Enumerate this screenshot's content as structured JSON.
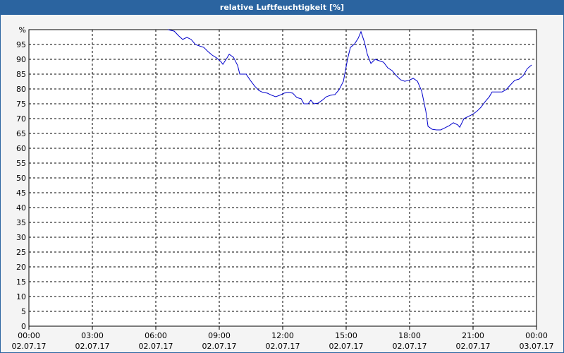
{
  "chart_data": {
    "type": "line",
    "title": "relative Luftfeuchtigkeit [%]",
    "x": [
      6.57,
      6.87,
      7.07,
      7.27,
      7.47,
      7.67,
      7.87,
      8.07,
      8.27,
      8.47,
      8.67,
      8.87,
      9.07,
      9.17,
      9.37,
      9.47,
      9.67,
      9.87,
      9.97,
      10.27,
      10.47,
      10.67,
      10.87,
      11.07,
      11.27,
      11.47,
      11.67,
      11.87,
      12.07,
      12.27,
      12.47,
      12.67,
      12.87,
      13.0,
      13.2,
      13.33,
      13.47,
      13.67,
      13.87,
      14.07,
      14.27,
      14.47,
      14.67,
      14.87,
      15.07,
      15.2,
      15.4,
      15.57,
      15.7,
      15.87,
      16.0,
      16.17,
      16.37,
      16.57,
      16.77,
      16.97,
      17.17,
      17.37,
      17.57,
      17.77,
      17.97,
      18.17,
      18.37,
      18.57,
      18.77,
      18.87,
      19.07,
      19.27,
      19.47,
      19.67,
      19.87,
      20.07,
      20.27,
      20.37,
      20.57,
      20.77,
      20.97,
      21.17,
      21.37,
      21.57,
      21.77,
      21.9,
      22.17,
      22.37,
      22.57,
      22.77,
      22.97,
      23.17,
      23.37,
      23.57,
      23.77
    ],
    "values": [
      100,
      99.5,
      98,
      96.7,
      97.4,
      96.7,
      95,
      94.5,
      94,
      92.6,
      91.4,
      90.5,
      89.3,
      88.3,
      90.5,
      91.7,
      90.7,
      87.9,
      85,
      85,
      82.9,
      81,
      79.5,
      78.8,
      78.6,
      77.9,
      77.4,
      77.9,
      78.6,
      78.8,
      78.6,
      77.1,
      76.7,
      75,
      75,
      76.2,
      75,
      75.2,
      76.2,
      77.4,
      77.9,
      78.1,
      79.8,
      82.6,
      90.2,
      94,
      95.2,
      97.1,
      99.3,
      95.7,
      91.7,
      88.6,
      90,
      89.5,
      89,
      87.1,
      86.2,
      84.5,
      83.1,
      82.6,
      82.9,
      83.6,
      82.6,
      79.3,
      72.4,
      67.4,
      66.4,
      66.2,
      66.2,
      66.9,
      67.6,
      68.6,
      67.9,
      67.1,
      70,
      70.7,
      71.4,
      72.4,
      73.8,
      75.7,
      77.4,
      79,
      79,
      79,
      79.8,
      81.4,
      82.9,
      83.3,
      84.5,
      86.9,
      88.1
    ],
    "color": "#0000cc",
    "xlim": [
      0,
      24
    ],
    "xticks": [
      {
        "value": 0,
        "label": "00:00\n02.07.17"
      },
      {
        "value": 3,
        "label": "03:00\n02.07.17"
      },
      {
        "value": 6,
        "label": "06:00\n02.07.17"
      },
      {
        "value": 9,
        "label": "09:00\n02.07.17"
      },
      {
        "value": 12,
        "label": "12:00\n02.07.17"
      },
      {
        "value": 15,
        "label": "15:00\n02.07.17"
      },
      {
        "value": 18,
        "label": "18:00\n02.07.17"
      },
      {
        "value": 21,
        "label": "21:00\n02.07.17"
      },
      {
        "value": 24,
        "label": "00:00\n03.07.17"
      }
    ],
    "ylim": [
      0,
      100
    ],
    "yticks": [
      0,
      5,
      10,
      15,
      20,
      25,
      30,
      35,
      40,
      45,
      50,
      55,
      60,
      65,
      70,
      75,
      80,
      85,
      90,
      95,
      {
        "value": 100,
        "label": "%"
      }
    ],
    "grid": true
  }
}
